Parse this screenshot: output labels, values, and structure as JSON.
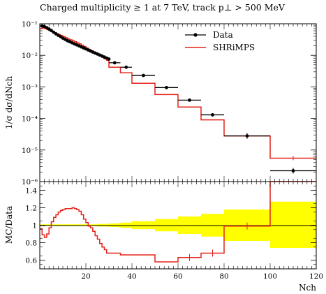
{
  "chart_data": [
    {
      "type": "line",
      "panel": "main",
      "title": "Charged multiplicity ≥ 1 at 7 TeV, track p⊥ > 500 MeV",
      "ylabel": "1/σ dσ/dNch",
      "yscale": "log",
      "xlim": [
        0,
        120
      ],
      "ylim": [
        1e-06,
        0.1
      ],
      "y_tick_labels": [
        "10⁻⁶",
        "10⁻⁵",
        "10⁻⁴",
        "10⁻³",
        "10⁻²",
        "10⁻¹"
      ],
      "y_tick_values": [
        1e-06,
        1e-05,
        0.0001,
        0.001,
        0.01,
        0.1
      ],
      "legend": {
        "position": "top-right",
        "entries": [
          "Data",
          "SHRiMPS"
        ]
      },
      "colors": {
        "data": "#000000",
        "mc": "#e4231a"
      },
      "series": [
        {
          "name": "Data",
          "style": "points-with-xerr",
          "x": [
            1,
            2,
            3,
            4,
            5,
            6,
            7,
            8,
            9,
            10,
            11,
            12,
            13,
            14,
            15,
            16,
            17,
            18,
            19,
            20,
            21,
            22,
            23,
            24,
            25,
            26,
            27,
            28,
            29,
            30,
            32.5,
            37.5,
            45,
            55,
            65,
            75,
            90,
            110
          ],
          "xerr": [
            0.5,
            0.5,
            0.5,
            0.5,
            0.5,
            0.5,
            0.5,
            0.5,
            0.5,
            0.5,
            0.5,
            0.5,
            0.5,
            0.5,
            0.5,
            0.5,
            0.5,
            0.5,
            0.5,
            0.5,
            0.5,
            0.5,
            0.5,
            0.5,
            0.5,
            0.5,
            0.5,
            0.5,
            0.5,
            0.5,
            2.5,
            2.5,
            5,
            5,
            5,
            5,
            10,
            10
          ],
          "y": [
            0.085,
            0.082,
            0.075,
            0.068,
            0.061,
            0.054,
            0.048,
            0.043,
            0.039,
            0.035,
            0.032,
            0.029,
            0.027,
            0.025,
            0.023,
            0.0215,
            0.02,
            0.0185,
            0.0172,
            0.016,
            0.0148,
            0.0137,
            0.0127,
            0.0118,
            0.011,
            0.0102,
            0.0095,
            0.0088,
            0.0082,
            0.0076,
            0.0058,
            0.0042,
            0.0023,
            0.00095,
            0.00038,
            0.00013,
            2.8e-05,
            2.2e-06
          ]
        },
        {
          "name": "SHRiMPS",
          "style": "step",
          "edges": [
            0,
            1,
            2,
            3,
            4,
            5,
            6,
            7,
            8,
            9,
            10,
            11,
            12,
            13,
            14,
            15,
            16,
            17,
            18,
            19,
            20,
            21,
            22,
            23,
            24,
            25,
            26,
            27,
            28,
            29,
            30,
            35,
            40,
            50,
            60,
            70,
            80,
            100,
            120
          ],
          "y": [
            0.07,
            0.073,
            0.071,
            0.066,
            0.061,
            0.056,
            0.052,
            0.048,
            0.045,
            0.042,
            0.039,
            0.036,
            0.033,
            0.031,
            0.029,
            0.027,
            0.025,
            0.023,
            0.021,
            0.019,
            0.017,
            0.0155,
            0.014,
            0.0128,
            0.0116,
            0.0105,
            0.0095,
            0.0086,
            0.0078,
            0.007,
            0.0042,
            0.0028,
            0.0013,
            0.00057,
            0.00023,
            9e-05,
            2.8e-05,
            5.5e-06
          ]
        }
      ]
    },
    {
      "type": "line",
      "panel": "ratio",
      "ylabel": "MC/Data",
      "xlabel": "Nch",
      "xlim": [
        0,
        120
      ],
      "ylim": [
        0.5,
        1.5
      ],
      "x_ticks": [
        20,
        40,
        60,
        80,
        100,
        120
      ],
      "y_ticks": [
        0.6,
        0.8,
        1.0,
        1.2,
        1.4
      ],
      "y_tick_labels": [
        "0.6",
        "0.8",
        "1",
        "1.2",
        "1.4"
      ],
      "colors": {
        "band": "#ffff00",
        "reference": "#000000",
        "mc": "#e4231a"
      },
      "data_uncertainty_band": {
        "edges": [
          0,
          5,
          10,
          15,
          20,
          25,
          30,
          35,
          40,
          50,
          60,
          70,
          80,
          100,
          120
        ],
        "low": [
          0.99,
          0.99,
          0.99,
          0.99,
          0.99,
          0.985,
          0.98,
          0.97,
          0.955,
          0.93,
          0.9,
          0.87,
          0.82,
          0.74,
          0.73
        ],
        "high": [
          1.01,
          1.01,
          1.01,
          1.01,
          1.01,
          1.015,
          1.02,
          1.03,
          1.045,
          1.07,
          1.1,
          1.13,
          1.18,
          1.27,
          1.28
        ]
      },
      "series": [
        {
          "name": "SHRiMPS",
          "style": "step",
          "edges": [
            0,
            1,
            2,
            3,
            4,
            5,
            6,
            7,
            8,
            9,
            10,
            11,
            12,
            13,
            14,
            15,
            16,
            17,
            18,
            19,
            20,
            21,
            22,
            23,
            24,
            25,
            26,
            27,
            28,
            29,
            30,
            35,
            40,
            50,
            60,
            70,
            80,
            100,
            120
          ],
          "y": [
            0.96,
            0.89,
            0.86,
            0.9,
            0.97,
            1.04,
            1.09,
            1.12,
            1.15,
            1.17,
            1.18,
            1.19,
            1.19,
            1.19,
            1.2,
            1.19,
            1.18,
            1.16,
            1.12,
            1.07,
            1.03,
            0.99,
            0.97,
            0.93,
            0.88,
            0.84,
            0.79,
            0.75,
            0.72,
            0.68,
            0.68,
            0.66,
            0.66,
            0.58,
            0.63,
            0.68,
            0.99,
            1.5
          ]
        }
      ]
    }
  ]
}
